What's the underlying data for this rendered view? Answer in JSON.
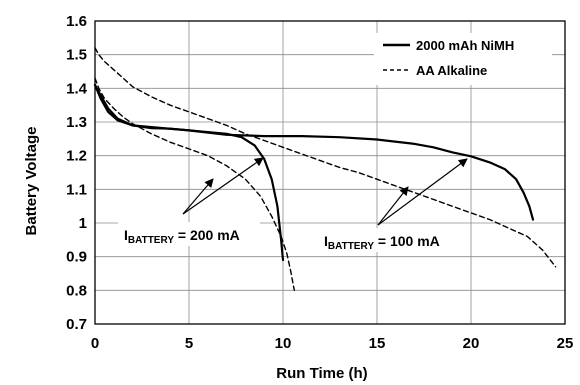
{
  "chart_data": {
    "type": "line",
    "xlabel": "Run Time (h)",
    "ylabel": "Battery Voltage",
    "xlim": [
      0,
      25
    ],
    "ylim": [
      0.7,
      1.6
    ],
    "xticks": [
      0,
      5,
      10,
      15,
      20,
      25
    ],
    "xtick_labels": [
      "0",
      "5",
      "10",
      "15",
      "20",
      "25"
    ],
    "yticks": [
      0.7,
      0.8,
      0.9,
      1.0,
      1.1,
      1.2,
      1.3,
      1.4,
      1.5,
      1.6
    ],
    "ytick_labels": [
      "0.7",
      "0.8",
      "0.9",
      "1",
      "1.1",
      "1.2",
      "1.3",
      "1.4",
      "1.5",
      "1.6"
    ],
    "grid": true,
    "legend_position": "top-right",
    "series": [
      {
        "name": "2000 mAh NiMH",
        "style": "solid",
        "color": "#000000",
        "condition": "200 mA",
        "x": [
          0,
          0.3,
          0.7,
          1.2,
          2,
          3,
          4,
          5,
          6,
          7,
          7.8,
          8.5,
          9,
          9.4,
          9.7,
          9.9,
          10.0
        ],
        "y": [
          1.41,
          1.37,
          1.33,
          1.305,
          1.29,
          1.282,
          1.28,
          1.275,
          1.27,
          1.265,
          1.255,
          1.23,
          1.19,
          1.13,
          1.05,
          0.95,
          0.89
        ]
      },
      {
        "name": "2000 mAh NiMH",
        "style": "solid",
        "color": "#000000",
        "condition": "100 mA",
        "x": [
          0,
          0.3,
          0.7,
          1.2,
          2,
          3,
          5,
          7,
          9,
          11,
          13,
          15,
          17,
          18,
          19,
          20,
          21,
          21.8,
          22.4,
          22.8,
          23.1,
          23.3
        ],
        "y": [
          1.41,
          1.38,
          1.34,
          1.31,
          1.29,
          1.285,
          1.275,
          1.262,
          1.258,
          1.258,
          1.255,
          1.248,
          1.235,
          1.225,
          1.21,
          1.198,
          1.18,
          1.16,
          1.13,
          1.09,
          1.05,
          1.01
        ]
      },
      {
        "name": "AA Alkaline",
        "style": "dashed",
        "color": "#000000",
        "condition": "200 mA",
        "x": [
          0,
          0.2,
          0.5,
          1,
          1.5,
          2,
          3,
          4,
          5,
          6,
          7,
          8,
          8.8,
          9.4,
          9.9,
          10.2,
          10.4,
          10.6
        ],
        "y": [
          1.43,
          1.4,
          1.37,
          1.34,
          1.315,
          1.295,
          1.265,
          1.24,
          1.22,
          1.2,
          1.17,
          1.13,
          1.08,
          1.02,
          0.96,
          0.91,
          0.86,
          0.8
        ]
      },
      {
        "name": "AA Alkaline",
        "style": "dashed",
        "color": "#000000",
        "condition": "100 mA",
        "x": [
          0,
          0.2,
          0.5,
          1,
          1.5,
          2,
          3,
          4,
          5,
          6,
          7,
          8,
          9,
          10,
          11,
          12,
          13,
          14,
          15,
          16,
          17,
          18,
          19,
          20,
          21,
          22,
          23,
          23.8,
          24.5
        ],
        "y": [
          1.52,
          1.5,
          1.48,
          1.455,
          1.43,
          1.405,
          1.375,
          1.35,
          1.33,
          1.31,
          1.29,
          1.265,
          1.245,
          1.225,
          1.205,
          1.185,
          1.165,
          1.15,
          1.13,
          1.11,
          1.09,
          1.07,
          1.05,
          1.03,
          1.01,
          0.985,
          0.96,
          0.92,
          0.87
        ]
      }
    ],
    "annotations": [
      {
        "prefix": "I",
        "subscript": "BATTERY",
        "suffix": " = 200 mA"
      },
      {
        "prefix": "I",
        "subscript": "BATTERY",
        "suffix": " = 100 mA"
      }
    ]
  }
}
